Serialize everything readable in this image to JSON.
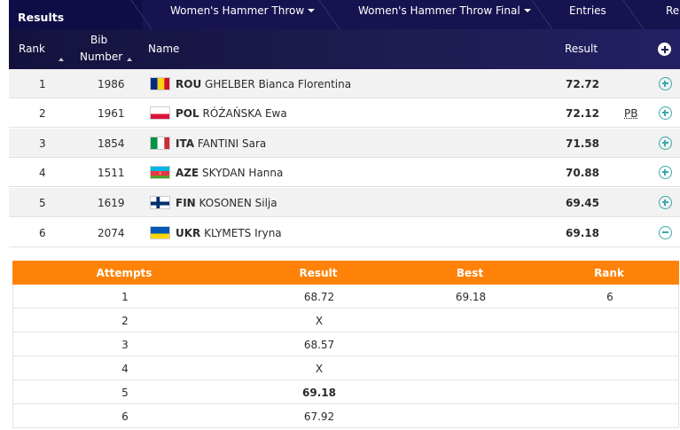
{
  "nav": {
    "results_label": "Results",
    "tabs": [
      {
        "label": "Women's Hammer Throw",
        "dropdown": true
      },
      {
        "label": "Women's Hammer Throw Final",
        "dropdown": true
      },
      {
        "label": "Entries",
        "dropdown": false
      },
      {
        "label": "Rep",
        "dropdown": false
      }
    ]
  },
  "results_table": {
    "headers": {
      "rank": "Rank",
      "bib_line1": "Bib",
      "bib_line2": "Number",
      "name": "Name",
      "result": "Result"
    },
    "rows": [
      {
        "rank": "1",
        "bib": "1986",
        "country": "ROU",
        "name": "GHELBER Bianca Florentina",
        "result": "72.72",
        "note": "",
        "flag": "romania",
        "expanded": false
      },
      {
        "rank": "2",
        "bib": "1961",
        "country": "POL",
        "name": "RÓŻAŃSKA Ewa",
        "result": "72.12",
        "note": "PB",
        "flag": "poland",
        "expanded": false
      },
      {
        "rank": "3",
        "bib": "1854",
        "country": "ITA",
        "name": "FANTINI Sara",
        "result": "71.58",
        "note": "",
        "flag": "italy",
        "expanded": false
      },
      {
        "rank": "4",
        "bib": "1511",
        "country": "AZE",
        "name": "SKYDAN Hanna",
        "result": "70.88",
        "note": "",
        "flag": "azerbaijan",
        "expanded": false
      },
      {
        "rank": "5",
        "bib": "1619",
        "country": "FIN",
        "name": "KOSONEN Silja",
        "result": "69.45",
        "note": "",
        "flag": "finland",
        "expanded": false
      },
      {
        "rank": "6",
        "bib": "2074",
        "country": "UKR",
        "name": "KLYMETS Iryna",
        "result": "69.18",
        "note": "",
        "flag": "ukraine",
        "expanded": true
      }
    ]
  },
  "attempts_table": {
    "headers": {
      "attempts": "Attempts",
      "result": "Result",
      "best": "Best",
      "rank": "Rank"
    },
    "rows": [
      {
        "attempt": "1",
        "result": "68.72",
        "best": "69.18",
        "rank": "6",
        "bold": false
      },
      {
        "attempt": "2",
        "result": "X",
        "best": "",
        "rank": "",
        "bold": false
      },
      {
        "attempt": "3",
        "result": "68.57",
        "best": "",
        "rank": "",
        "bold": false
      },
      {
        "attempt": "4",
        "result": "X",
        "best": "",
        "rank": "",
        "bold": false
      },
      {
        "attempt": "5",
        "result": "69.18",
        "best": "",
        "rank": "",
        "bold": true
      },
      {
        "attempt": "6",
        "result": "67.92",
        "best": "",
        "rank": "",
        "bold": false
      }
    ]
  },
  "colors": {
    "nav_bg": "#0f0d45",
    "header_bg": "#1f1c52",
    "accent_orange": "#ff8208",
    "expand_icon": "#3aa9a9"
  }
}
